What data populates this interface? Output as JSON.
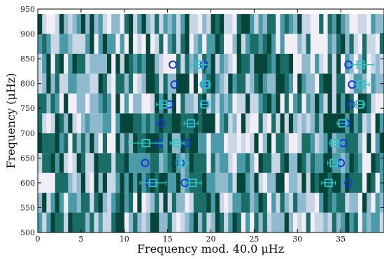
{
  "chart_data": {
    "type": "heatmap",
    "title": "",
    "xlabel": "Frequency mod. 40.0 μHz",
    "ylabel": "Frequency (μHz)",
    "xlim": [
      0,
      40
    ],
    "ylim": [
      500,
      950
    ],
    "x_ticks": [
      "0",
      "5",
      "10",
      "15",
      "20",
      "25",
      "30",
      "35"
    ],
    "x_tick_values": [
      0,
      5,
      10,
      15,
      20,
      25,
      30,
      35
    ],
    "y_ticks": [
      "500",
      "550",
      "600",
      "650",
      "700",
      "750",
      "800",
      "850",
      "900",
      "950"
    ],
    "y_tick_values": [
      500,
      550,
      600,
      650,
      700,
      750,
      800,
      850,
      900,
      950
    ],
    "echelle": {
      "bin_width": 40.0,
      "row_start": 500,
      "n_rows": 11,
      "n_cols": 80,
      "colormap": [
        "#f2eef6",
        "#c9d6e6",
        "#8fbacd",
        "#4a9aa8",
        "#1b6e67",
        "#06453a"
      ]
    },
    "series": [
      {
        "marker": "circle",
        "color": "#1a35d8",
        "points": [
          [
            12.9,
            600
          ],
          [
            17.0,
            600
          ],
          [
            35.9,
            600
          ],
          [
            12.4,
            640
          ],
          [
            16.5,
            640
          ],
          [
            35.0,
            640
          ],
          [
            14.1,
            680
          ],
          [
            17.2,
            680
          ],
          [
            35.3,
            680
          ],
          [
            14.3,
            720
          ],
          [
            17.7,
            720
          ],
          [
            35.6,
            720
          ],
          [
            15.2,
            758
          ],
          [
            19.2,
            758
          ],
          [
            36.2,
            758
          ],
          [
            15.8,
            798
          ],
          [
            19.2,
            798
          ],
          [
            36.3,
            798
          ],
          [
            15.6,
            838
          ],
          [
            19.2,
            838
          ],
          [
            35.9,
            838
          ]
        ]
      },
      {
        "marker": "square",
        "color": "#2ec4c4",
        "points": [
          [
            13.3,
            600,
            1.5
          ],
          [
            17.9,
            600,
            1.0
          ],
          [
            33.6,
            600,
            0.8
          ],
          [
            16.7,
            640,
            0.7
          ],
          [
            34.2,
            640,
            0.7
          ],
          [
            12.5,
            680,
            2.0
          ],
          [
            16.1,
            680,
            0.8
          ],
          [
            34.3,
            680,
            0.6
          ],
          [
            17.7,
            720,
            0.8
          ],
          [
            35.2,
            720,
            0.6
          ],
          [
            14.5,
            758,
            0.8
          ],
          [
            19.3,
            758,
            0.5
          ],
          [
            37.2,
            758,
            0.6
          ],
          [
            19.4,
            798,
            0.6
          ],
          [
            37.4,
            798,
            0.9
          ],
          [
            18.7,
            838,
            1.0
          ],
          [
            37.3,
            838,
            1.5
          ]
        ]
      }
    ]
  }
}
